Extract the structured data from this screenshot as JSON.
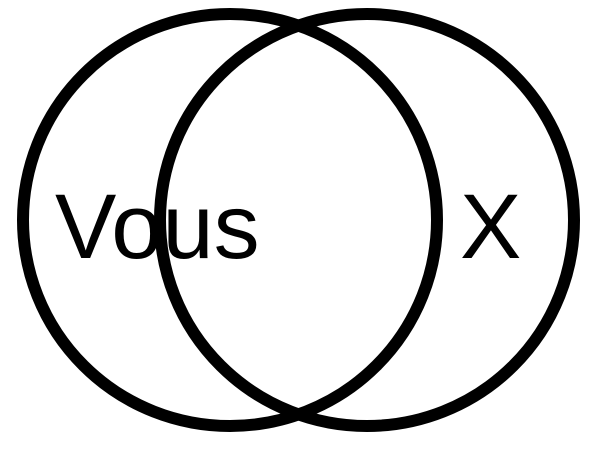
{
  "diagram": {
    "type": "venn",
    "sets": [
      {
        "label": "Vous"
      },
      {
        "label": "X"
      }
    ],
    "stroke_color": "#000000",
    "background_color": "#ffffff"
  }
}
